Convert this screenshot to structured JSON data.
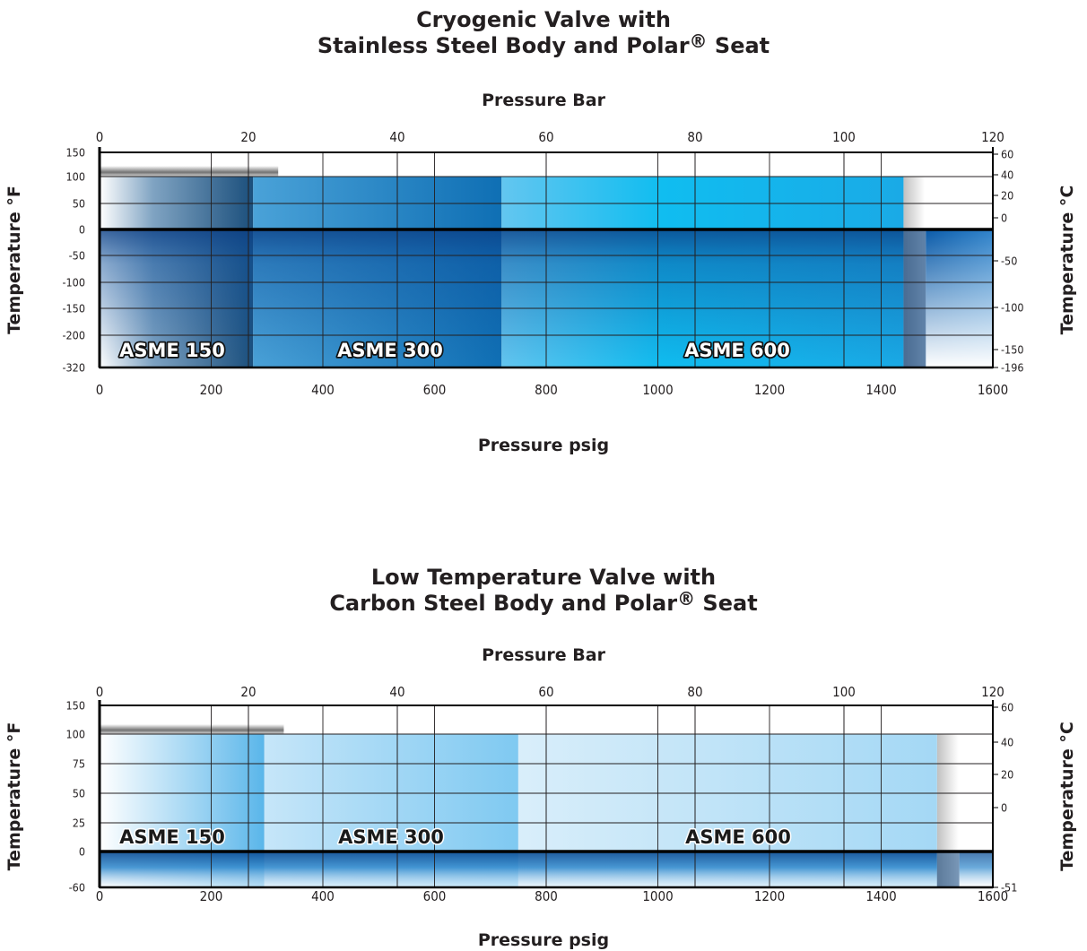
{
  "chart_data": [
    {
      "type": "area",
      "title_line1": "Cryogenic Valve with",
      "title_line2_pre": "Stainless Steel Body and Polar",
      "title_mark": "®",
      "title_line2_post": " Seat",
      "top_axis_label": "Pressure Bar",
      "bottom_axis_label": "Pressure psig",
      "left_axis_label": "Temperature °F",
      "right_axis_label": "Temperature °C",
      "bar_ticks": [
        "0",
        "20",
        "40",
        "60",
        "80",
        "100",
        "120"
      ],
      "bar_range": [
        0,
        120
      ],
      "psig_ticks": [
        "0",
        "200",
        "400",
        "600",
        "800",
        "1000",
        "1200",
        "1400",
        "1600"
      ],
      "psig_range": [
        0,
        1600
      ],
      "f_ticks": [
        "150",
        "100",
        "50",
        "0",
        "-50",
        "-100",
        "-150",
        "-200",
        "-320"
      ],
      "c_ticks": [
        "60",
        "40",
        "20",
        "0",
        "-50",
        "-100",
        "-150",
        "-196"
      ],
      "bands": [
        {
          "name": "ASME 150",
          "max_psig": 275,
          "tmin_f": -320,
          "tmax_f": 100
        },
        {
          "name": "ASME 300",
          "max_psig": 720,
          "tmin_f": -320,
          "tmax_f": 100
        },
        {
          "name": "ASME 600",
          "max_psig": 1440,
          "tmin_f": -320,
          "tmax_f": 100
        }
      ],
      "colors": {
        "asme150": "#1e5a8c",
        "asme300": "#1b78bd",
        "asme600": "#17b3ea",
        "cold": "#0a55a6"
      }
    },
    {
      "type": "area",
      "title_line1": "Low Temperature Valve with",
      "title_line2_pre": "Carbon Steel Body and Polar",
      "title_mark": "®",
      "title_line2_post": " Seat",
      "top_axis_label": "Pressure Bar",
      "bottom_axis_label": "Pressure psig",
      "left_axis_label": "Temperature °F",
      "right_axis_label": "Temperature °C",
      "bar_ticks": [
        "0",
        "20",
        "40",
        "60",
        "80",
        "100",
        "120"
      ],
      "bar_range": [
        0,
        120
      ],
      "psig_ticks": [
        "0",
        "200",
        "400",
        "600",
        "800",
        "1000",
        "1200",
        "1400",
        "1600"
      ],
      "psig_range": [
        0,
        1600
      ],
      "f_ticks": [
        "150",
        "100",
        "75",
        "50",
        "25",
        "0",
        "-60"
      ],
      "c_ticks": [
        "60",
        "40",
        "20",
        "0",
        "-51"
      ],
      "bands": [
        {
          "name": "ASME 150",
          "max_psig": 295,
          "tmin_f": -60,
          "tmax_f": 100
        },
        {
          "name": "ASME 300",
          "max_psig": 750,
          "tmin_f": -60,
          "tmax_f": 100
        },
        {
          "name": "ASME 600",
          "max_psig": 1500,
          "tmin_f": -60,
          "tmax_f": 100
        }
      ],
      "colors": {
        "asme150": "#5fb8ec",
        "asme300": "#84cbf2",
        "asme600": "#b3dff8",
        "cold": "#0a55a6"
      }
    }
  ]
}
